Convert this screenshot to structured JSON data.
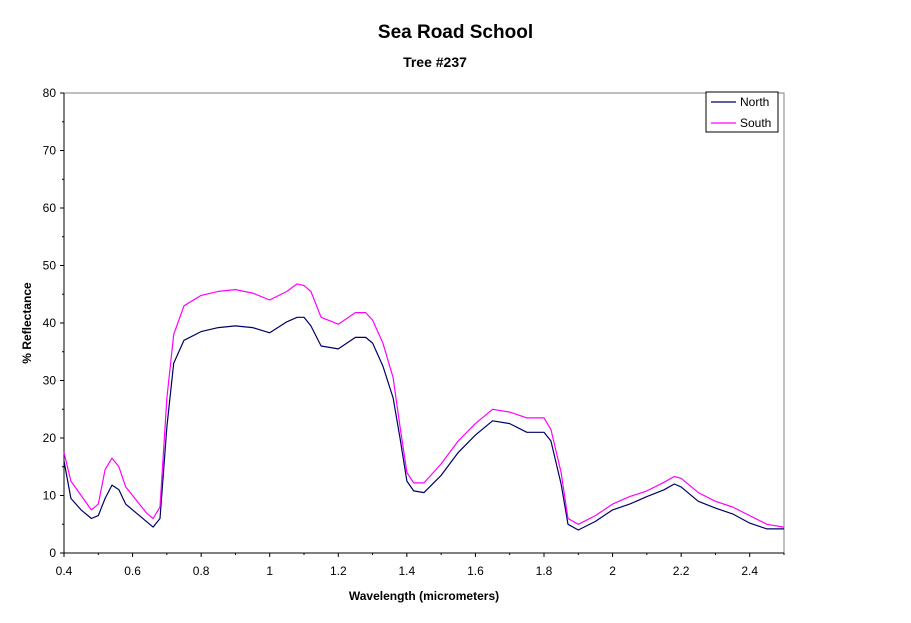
{
  "chart_data": {
    "type": "line",
    "title": "Sea Road School",
    "subtitle": "Tree #237",
    "xlabel": "Wavelength (micrometers)",
    "ylabel": "% Reflectance",
    "xlim": [
      0.4,
      2.5
    ],
    "ylim": [
      0,
      80
    ],
    "xticks": [
      0.4,
      0.6,
      0.8,
      1,
      1.2,
      1.4,
      1.6,
      1.8,
      2,
      2.2,
      2.4
    ],
    "xtick_labels": [
      "0.4",
      "0.6",
      "0.8",
      "1",
      "1.2",
      "1.4",
      "1.6",
      "1.8",
      "2",
      "2.2",
      "2.4"
    ],
    "yticks": [
      0,
      10,
      20,
      30,
      40,
      50,
      60,
      70,
      80
    ],
    "ytick_labels": [
      "0",
      "10",
      "20",
      "30",
      "40",
      "50",
      "60",
      "70",
      "80"
    ],
    "grid": false,
    "legend_position": "top-right",
    "series": [
      {
        "name": "North",
        "color": "#000066",
        "x": [
          0.4,
          0.42,
          0.45,
          0.48,
          0.5,
          0.52,
          0.54,
          0.56,
          0.58,
          0.6,
          0.62,
          0.64,
          0.66,
          0.68,
          0.7,
          0.72,
          0.75,
          0.8,
          0.85,
          0.9,
          0.95,
          1.0,
          1.05,
          1.08,
          1.1,
          1.12,
          1.15,
          1.2,
          1.25,
          1.28,
          1.3,
          1.33,
          1.36,
          1.38,
          1.4,
          1.42,
          1.45,
          1.5,
          1.55,
          1.6,
          1.65,
          1.7,
          1.75,
          1.8,
          1.82,
          1.85,
          1.87,
          1.9,
          1.95,
          2.0,
          2.05,
          2.1,
          2.15,
          2.18,
          2.2,
          2.25,
          2.3,
          2.35,
          2.4,
          2.45,
          2.5
        ],
        "y": [
          16,
          9.5,
          7.5,
          6,
          6.5,
          9.5,
          11.8,
          11,
          8.5,
          7.5,
          6.5,
          5.5,
          4.5,
          6,
          22,
          33,
          37,
          38.5,
          39.2,
          39.5,
          39.2,
          38.3,
          40.2,
          41,
          41,
          39.5,
          36,
          35.5,
          37.5,
          37.5,
          36.5,
          32.5,
          27,
          20,
          12.5,
          10.8,
          10.5,
          13.5,
          17.5,
          20.5,
          23,
          22.5,
          21,
          21,
          19.5,
          12,
          5,
          4,
          5.5,
          7.5,
          8.5,
          9.8,
          11,
          12,
          11.5,
          9,
          7.8,
          6.8,
          5.2,
          4.2,
          4.2
        ]
      },
      {
        "name": "South",
        "color": "#ff00ff",
        "x": [
          0.4,
          0.42,
          0.45,
          0.48,
          0.5,
          0.52,
          0.54,
          0.56,
          0.58,
          0.6,
          0.62,
          0.64,
          0.66,
          0.68,
          0.7,
          0.72,
          0.75,
          0.8,
          0.85,
          0.9,
          0.95,
          1.0,
          1.05,
          1.08,
          1.1,
          1.12,
          1.15,
          1.2,
          1.25,
          1.28,
          1.3,
          1.33,
          1.36,
          1.38,
          1.4,
          1.42,
          1.45,
          1.5,
          1.55,
          1.6,
          1.65,
          1.7,
          1.75,
          1.8,
          1.82,
          1.85,
          1.87,
          1.9,
          1.95,
          2.0,
          2.05,
          2.1,
          2.15,
          2.18,
          2.2,
          2.25,
          2.3,
          2.35,
          2.4,
          2.45,
          2.5
        ],
        "y": [
          17.5,
          12.5,
          10,
          7.5,
          8.5,
          14.5,
          16.5,
          15,
          11.5,
          10,
          8.5,
          7,
          6,
          8,
          27,
          38,
          43,
          44.8,
          45.5,
          45.8,
          45.2,
          44,
          45.5,
          46.8,
          46.5,
          45.5,
          41,
          39.8,
          41.8,
          41.8,
          40.5,
          36.5,
          30.5,
          22,
          14,
          12.2,
          12.2,
          15.5,
          19.5,
          22.5,
          25,
          24.5,
          23.5,
          23.5,
          21.5,
          14,
          6,
          5,
          6.5,
          8.5,
          9.8,
          10.8,
          12.3,
          13.3,
          13,
          10.5,
          9,
          8,
          6.5,
          5,
          4.5
        ]
      }
    ]
  }
}
